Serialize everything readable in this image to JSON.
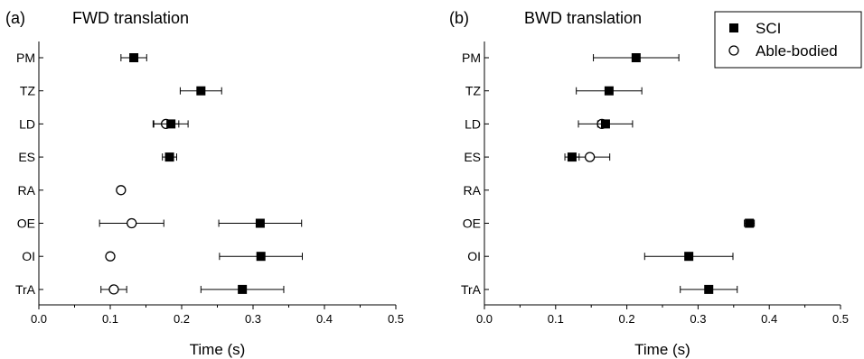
{
  "chart_data": [
    {
      "type": "scatter",
      "title": "FWD translation",
      "panel_label": "(a)",
      "xlabel": "Time (s)",
      "ylabel": "",
      "xlim": [
        0.0,
        0.5
      ],
      "xticks": [
        "0.0",
        "0.1",
        "0.2",
        "0.3",
        "0.4",
        "0.5"
      ],
      "categories": [
        "PM",
        "TZ",
        "LD",
        "ES",
        "RA",
        "OE",
        "OI",
        "TrA"
      ],
      "grid": false,
      "series": [
        {
          "name": "SCI",
          "marker": "filled-square",
          "values": [
            0.133,
            0.227,
            0.185,
            0.183,
            null,
            0.31,
            0.311,
            0.285
          ],
          "errors": [
            0.018,
            0.029,
            0.024,
            0.01,
            null,
            0.058,
            0.058,
            0.058
          ]
        },
        {
          "name": "Able-bodied",
          "marker": "open-circle",
          "values": [
            null,
            null,
            0.178,
            null,
            0.115,
            0.13,
            0.1,
            0.105
          ],
          "errors": [
            null,
            null,
            0.018,
            null,
            0.0,
            0.045,
            0.0,
            0.018
          ]
        }
      ]
    },
    {
      "type": "scatter",
      "title": "BWD translation",
      "panel_label": "(b)",
      "xlabel": "Time (s)",
      "ylabel": "",
      "xlim": [
        0.0,
        0.5
      ],
      "xticks": [
        "0.0",
        "0.1",
        "0.2",
        "0.3",
        "0.4",
        "0.5"
      ],
      "categories": [
        "PM",
        "TZ",
        "LD",
        "ES",
        "RA",
        "OE",
        "OI",
        "TrA"
      ],
      "grid": false,
      "series": [
        {
          "name": "SCI",
          "marker": "filled-square",
          "values": [
            0.213,
            0.175,
            0.17,
            0.123,
            null,
            0.372,
            0.287,
            0.315
          ],
          "errors": [
            0.06,
            0.046,
            0.038,
            0.01,
            null,
            0.007,
            0.062,
            0.04
          ]
        },
        {
          "name": "Able-bodied",
          "marker": "open-circle",
          "values": [
            null,
            null,
            0.165,
            0.148,
            null,
            null,
            null,
            null
          ],
          "errors": [
            null,
            null,
            0.006,
            0.028,
            null,
            null,
            null,
            null
          ]
        }
      ]
    }
  ],
  "legend": {
    "placement": "top-right",
    "items": [
      {
        "name": "SCI",
        "marker": "filled-square"
      },
      {
        "name": "Able-bodied",
        "marker": "open-circle"
      }
    ]
  }
}
